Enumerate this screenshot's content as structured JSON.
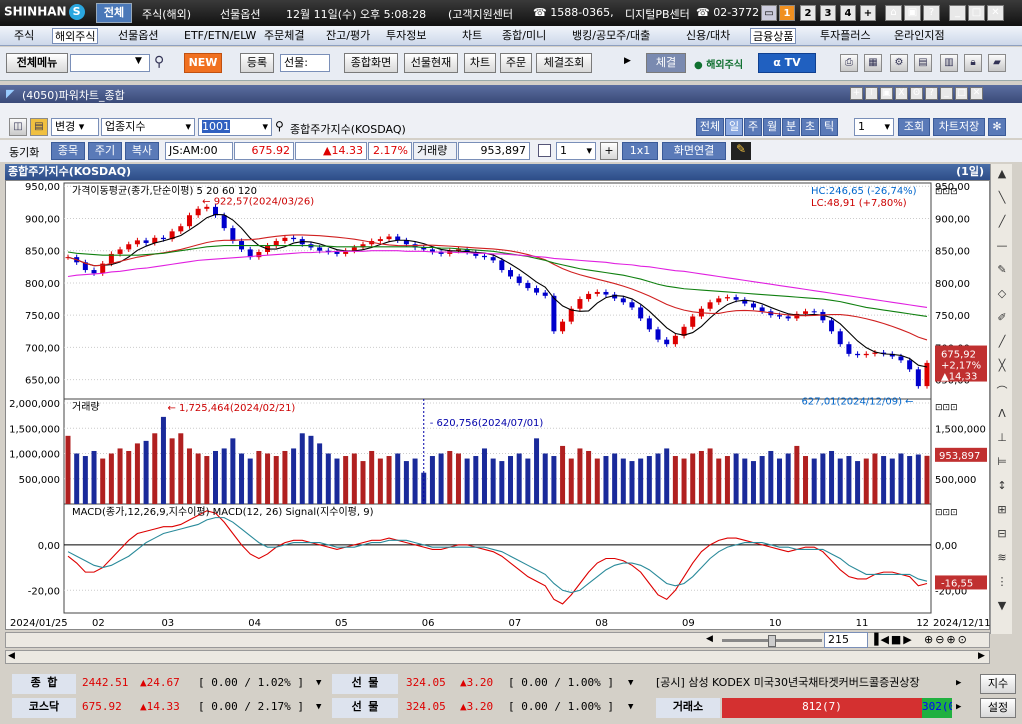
{
  "app": {
    "logo": "SHINHAN",
    "tab_all": "전체",
    "title_items": [
      "주식(해외)",
      "선물옵션",
      "12월 11일(수) 오후 5:08:28",
      "(고객지원센터",
      "☎ 1588-0365,",
      "디지털PB센터",
      "☎ 02-3772"
    ],
    "pages": [
      "1",
      "2",
      "3",
      "4",
      "+"
    ]
  },
  "menu": [
    "주식",
    "해외주식",
    "선물옵션",
    "ETF/ETN/ELW",
    "주문체결",
    "잔고/평가",
    "투자정보",
    "차트",
    "종합/미니",
    "뱅킹/공모주/대출",
    "신용/대차",
    "금융상품",
    "투자플러스",
    "온라인지점"
  ],
  "toolbar": {
    "all_menu": "전체메뉴",
    "new": "NEW",
    "register": "등록",
    "futures_select": "선물:",
    "general_screen": "종합화면",
    "futures_status": "선물현재",
    "chart": "차트",
    "order": "주문",
    "fill_query": "체결조회",
    "fill": "체결",
    "overseas": "해외주식",
    "tv": "TV"
  },
  "window": {
    "title": "(4050)파워차트_종합"
  },
  "controls": {
    "change": "변경",
    "sector_index": "업종지수",
    "code": "1001",
    "name": "종합주가지수(KOSDAQ)",
    "periods": [
      "전체",
      "일",
      "주",
      "월",
      "분",
      "초",
      "틱"
    ],
    "count": "1",
    "lookup": "조회",
    "save": "차트저장"
  },
  "row2": {
    "sync": "동기화",
    "item": "종목",
    "cycle": "주기",
    "copy": "복사",
    "stamp": "JS:AM:00",
    "price": "675.92",
    "change": "▲14.33",
    "pct": "2.17%",
    "vol_label": "거래량",
    "volume": "953,897",
    "n": "1",
    "ratio": "1x1",
    "link": "화면연결"
  },
  "chart_header": {
    "title": "종합주가지수(KOSDAQ)",
    "interval": "(1일)"
  },
  "chart_data": [
    {
      "type": "candlestick",
      "title": "가격이동평균(종가,단순이평) 5 20 60 120",
      "ma": [
        {
          "name": "5",
          "color": "#000000"
        },
        {
          "name": "20",
          "color": "#d02020"
        },
        {
          "name": "60",
          "color": "#108010"
        },
        {
          "name": "120",
          "color": "#e020e0"
        }
      ],
      "yticks": [
        "950,00",
        "900,00",
        "850,00",
        "800,00",
        "750,00",
        "700,00",
        "650,00"
      ],
      "ylim": [
        620,
        955
      ],
      "hc": "HC:246,65 (-26,74%)",
      "lc": "LC:48,91 (+7,80%)",
      "max_label": "922,57(2024/03/26)",
      "min_label": "627,01(2024/12/09)",
      "last": {
        "price": "675,92",
        "change": "+2,17%",
        "delta": "▲14,33"
      },
      "close": [
        840,
        832,
        820,
        815,
        830,
        845,
        852,
        860,
        866,
        862,
        870,
        868,
        880,
        888,
        905,
        915,
        918,
        905,
        885,
        865,
        852,
        840,
        848,
        858,
        865,
        870,
        868,
        860,
        855,
        850,
        848,
        845,
        850,
        855,
        860,
        865,
        868,
        872,
        866,
        860,
        855,
        852,
        848,
        845,
        850,
        852,
        848,
        842,
        840,
        835,
        820,
        810,
        800,
        792,
        785,
        780,
        725,
        740,
        760,
        775,
        783,
        786,
        782,
        776,
        770,
        762,
        745,
        728,
        712,
        705,
        718,
        732,
        748,
        760,
        770,
        776,
        778,
        774,
        768,
        762,
        756,
        750,
        748,
        745,
        752,
        756,
        755,
        742,
        725,
        705,
        690,
        688,
        690,
        692,
        690,
        686,
        680,
        666,
        640,
        676
      ],
      "ma120": [
        810,
        812,
        813,
        814,
        815,
        817,
        818,
        820,
        822,
        823,
        825,
        827,
        829,
        831,
        833,
        835,
        836,
        837,
        838,
        839,
        840,
        841,
        842,
        843,
        844,
        845,
        846,
        847,
        847,
        848,
        848,
        849,
        849,
        849,
        849,
        850,
        850,
        850,
        850,
        849,
        849,
        849,
        848,
        848,
        848,
        847,
        847,
        846,
        846,
        845,
        845,
        844,
        843,
        842,
        841,
        840,
        838,
        837,
        836,
        835,
        834,
        833,
        832,
        830,
        829,
        828,
        826,
        825,
        823,
        821,
        819,
        818,
        816,
        814,
        812,
        810,
        808,
        806,
        804,
        802,
        800,
        798,
        796,
        794,
        792,
        790,
        788,
        786,
        784,
        782,
        780,
        778,
        776,
        774,
        772,
        770,
        768,
        766,
        764,
        762
      ],
      "ma60": [
        848,
        846,
        845,
        844,
        843,
        843,
        843,
        843,
        843,
        844,
        845,
        846,
        848,
        850,
        852,
        854,
        856,
        857,
        858,
        858,
        858,
        858,
        858,
        858,
        858,
        858,
        858,
        858,
        858,
        857,
        857,
        856,
        856,
        856,
        856,
        856,
        856,
        856,
        856,
        856,
        856,
        855,
        855,
        854,
        854,
        853,
        852,
        851,
        850,
        849,
        847,
        845,
        843,
        841,
        838,
        835,
        831,
        828,
        825,
        822,
        820,
        818,
        816,
        814,
        812,
        809,
        806,
        802,
        798,
        795,
        793,
        791,
        790,
        789,
        788,
        787,
        786,
        785,
        784,
        783,
        782,
        781,
        780,
        779,
        778,
        777,
        776,
        775,
        773,
        771,
        768,
        765,
        762,
        760,
        758,
        756,
        754,
        752,
        750,
        748
      ]
    },
    {
      "type": "bar",
      "title": "거래량",
      "yticks": [
        "2,000,000",
        "1,500,000",
        "1,000,000",
        "500,000"
      ],
      "ylim": [
        0,
        2000000
      ],
      "max_label": "1,725,464(2024/02/21)",
      "mid_label": "620,756(2024/07/01)",
      "last": "953,897",
      "values": [
        1350,
        1000,
        950,
        1050,
        900,
        1000,
        1100,
        1050,
        1200,
        1250,
        1400,
        1725,
        1300,
        1400,
        1100,
        1000,
        950,
        1050,
        1100,
        1300,
        1000,
        900,
        1050,
        1000,
        950,
        1050,
        1100,
        1400,
        1350,
        1200,
        1000,
        900,
        950,
        1000,
        850,
        1050,
        900,
        950,
        1000,
        850,
        900,
        620,
        950,
        1000,
        1050,
        1000,
        900,
        950,
        1100,
        900,
        850,
        950,
        1000,
        900,
        1300,
        1000,
        950,
        1150,
        900,
        1100,
        1050,
        900,
        950,
        1000,
        900,
        850,
        900,
        950,
        1000,
        1100,
        950,
        900,
        1000,
        1050,
        1100,
        900,
        950,
        1000,
        900,
        850,
        950,
        1050,
        900,
        1000,
        1150,
        950,
        900,
        1000,
        1050,
        900,
        950,
        850,
        900,
        1000,
        950,
        900,
        1000,
        950,
        980,
        954
      ],
      "xlabels": [
        "2024/01/25",
        "02",
        "03",
        "04",
        "05",
        "06",
        "07",
        "08",
        "09",
        "10",
        "11",
        "12",
        "2024/12/11"
      ]
    },
    {
      "type": "line",
      "title": "MACD(종가,12,26,9,지수이평) MACD(12, 26) Signal(지수이평, 9)",
      "yticks": [
        "0,00",
        "-20,00"
      ],
      "ylim": [
        -30,
        18
      ],
      "last": "-16,55",
      "macd": [
        -5,
        -8,
        -12,
        -12,
        -10,
        -6,
        -2,
        2,
        5,
        6,
        7,
        8,
        8,
        9,
        11,
        13,
        15,
        14,
        10,
        5,
        0,
        -4,
        -6,
        -4,
        -1,
        1,
        2,
        2,
        1,
        0,
        -1,
        -2,
        -1,
        0,
        1,
        2,
        2,
        3,
        2,
        1,
        0,
        -1,
        -2,
        -2,
        -1,
        0,
        0,
        -1,
        -2,
        -3,
        -5,
        -8,
        -11,
        -14,
        -16,
        -18,
        -24,
        -26,
        -22,
        -17,
        -12,
        -8,
        -6,
        -6,
        -7,
        -9,
        -12,
        -17,
        -22,
        -24,
        -20,
        -14,
        -8,
        -3,
        0,
        2,
        3,
        3,
        2,
        1,
        0,
        -1,
        -2,
        -3,
        -2,
        -1,
        -1,
        -3,
        -7,
        -11,
        -14,
        -15,
        -15,
        -13,
        -12,
        -12,
        -13,
        -14,
        -18,
        -17
      ],
      "signal": [
        -3,
        -5,
        -7,
        -9,
        -10,
        -9,
        -7,
        -5,
        -2,
        1,
        3,
        5,
        6,
        7,
        8,
        9,
        11,
        12,
        12,
        10,
        7,
        4,
        1,
        -1,
        -1,
        0,
        1,
        1,
        1,
        1,
        0,
        -1,
        -1,
        -1,
        0,
        1,
        1,
        2,
        2,
        2,
        1,
        0,
        -1,
        -1,
        -1,
        -1,
        -1,
        -1,
        -1,
        -2,
        -3,
        -5,
        -7,
        -9,
        -11,
        -13,
        -17,
        -20,
        -21,
        -20,
        -17,
        -14,
        -11,
        -9,
        -8,
        -8,
        -9,
        -11,
        -14,
        -17,
        -18,
        -17,
        -14,
        -10,
        -6,
        -3,
        -1,
        0,
        1,
        1,
        1,
        0,
        -1,
        -1,
        -2,
        -2,
        -2,
        -2,
        -4,
        -6,
        -9,
        -11,
        -13,
        -13,
        -13,
        -13,
        -13,
        -13,
        -15,
        -16
      ]
    }
  ],
  "navigator": {
    "count": "215"
  },
  "bottom": {
    "r1": {
      "label": "종 합",
      "price": "2442.51",
      "chg": "▲24.67",
      "box": "[ 0.00 / 1.02% ]",
      "fut_label": "선 물",
      "fut_price": "324.05",
      "fut_chg": "▲3.20",
      "fut_box": "[ 0.00 / 1.00% ]",
      "notice": "[공시] 삼성 KODEX 미국30년국채타겟커버드콜증권상장",
      "idx": "지수"
    },
    "r2": {
      "label": "코스닥",
      "price": "675.92",
      "chg": "▲14.33",
      "box": "[ 0.00 / 2.17% ]",
      "fut_label": "선 물",
      "fut_price": "324.05",
      "fut_chg": "▲3.20",
      "fut_box": "[ 0.00 / 1.00% ]",
      "trade_label": "거래소",
      "trade_val": "812(7)",
      "trade_val2": "302(0",
      "setting": "설정"
    }
  }
}
